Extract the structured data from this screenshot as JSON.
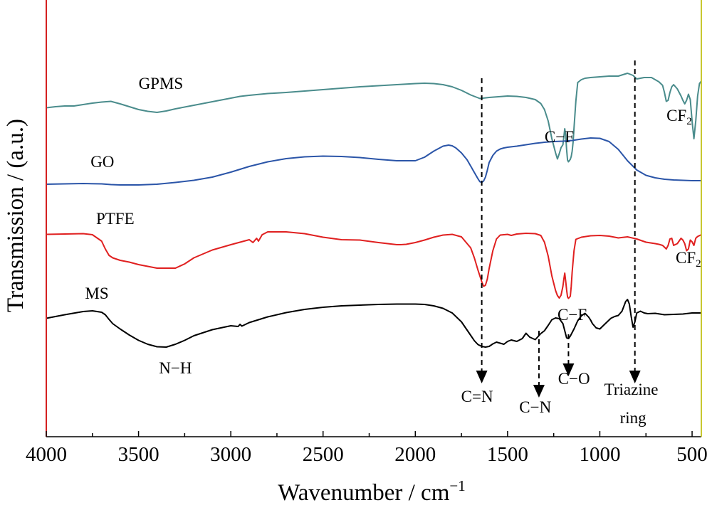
{
  "chart_data": {
    "type": "line",
    "xlabel": "Wavenumber / cm",
    "xlabel_superscript": "−1",
    "ylabel": "Transmission / (a.u.)",
    "xlim": [
      4000,
      450
    ],
    "ylim": [
      0,
      100
    ],
    "x_reversed": true,
    "x_ticks": [
      4000,
      3500,
      3000,
      2500,
      2000,
      1500,
      1000,
      500
    ],
    "grid": false,
    "legend": "none",
    "series": [
      {
        "name": "GPMS",
        "color": "#4a8c8c",
        "x": [
          4000,
          3950,
          3900,
          3850,
          3800,
          3750,
          3700,
          3650,
          3600,
          3500,
          3450,
          3400,
          3350,
          3300,
          3200,
          3100,
          3000,
          2950,
          2900,
          2800,
          2700,
          2600,
          2500,
          2400,
          2300,
          2200,
          2100,
          2000,
          1950,
          1900,
          1850,
          1800,
          1750,
          1700,
          1650,
          1600,
          1500,
          1450,
          1400,
          1350,
          1320,
          1300,
          1280,
          1260,
          1240,
          1230,
          1220,
          1210,
          1200,
          1195,
          1190,
          1185,
          1180,
          1175,
          1170,
          1160,
          1155,
          1150,
          1145,
          1140,
          1130,
          1120,
          1100,
          1080,
          1050,
          1000,
          950,
          900,
          850,
          820,
          800,
          780,
          760,
          740,
          720,
          700,
          680,
          660,
          650,
          640,
          630,
          620,
          610,
          600,
          580,
          560,
          550,
          540,
          530,
          520,
          510,
          500,
          490,
          480,
          470,
          460,
          450
        ],
        "y": [
          91.7,
          92.0,
          92.2,
          92.2,
          92.6,
          93.0,
          93.3,
          93.5,
          92.8,
          91.2,
          90.7,
          90.4,
          90.8,
          91.4,
          92.4,
          93.4,
          94.4,
          94.9,
          95.2,
          95.7,
          96.0,
          96.4,
          96.8,
          97.2,
          97.6,
          97.9,
          98.2,
          98.5,
          98.6,
          98.5,
          98.2,
          97.6,
          96.6,
          95.3,
          94.3,
          94.6,
          95.0,
          94.9,
          94.6,
          94.0,
          92.9,
          91.2,
          88.0,
          83.0,
          79.0,
          77.3,
          78.8,
          80.5,
          81.3,
          83.5,
          85.8,
          84.0,
          80.0,
          77.0,
          76.5,
          77.2,
          78.0,
          79.5,
          82.0,
          86.0,
          93.6,
          98.8,
          99.6,
          100.0,
          100.2,
          100.4,
          100.6,
          100.6,
          101.4,
          100.8,
          99.8,
          100.0,
          100.2,
          100.2,
          100.2,
          99.6,
          99.0,
          98.0,
          96.0,
          93.5,
          93.8,
          96.0,
          97.6,
          98.2,
          97.0,
          95.0,
          93.8,
          92.8,
          93.8,
          95.5,
          94.0,
          88.0,
          83.0,
          88.0,
          95.0,
          98.5,
          99.2
        ]
      },
      {
        "name": "GO",
        "color": "#2b55a8",
        "x": [
          4000,
          3900,
          3800,
          3700,
          3650,
          3600,
          3500,
          3400,
          3300,
          3200,
          3100,
          3000,
          2900,
          2800,
          2700,
          2600,
          2500,
          2400,
          2300,
          2200,
          2100,
          2000,
          1950,
          1900,
          1850,
          1820,
          1800,
          1780,
          1750,
          1720,
          1700,
          1680,
          1660,
          1650,
          1640,
          1630,
          1620,
          1610,
          1600,
          1580,
          1560,
          1540,
          1520,
          1500,
          1450,
          1400,
          1350,
          1300,
          1250,
          1200,
          1150,
          1100,
          1050,
          1000,
          950,
          900,
          850,
          800,
          750,
          700,
          650,
          600,
          550,
          500,
          450
        ],
        "y": [
          70.2,
          70.3,
          70.4,
          70.3,
          70.1,
          70.0,
          70.0,
          70.2,
          70.7,
          71.3,
          72.2,
          73.6,
          75.2,
          76.5,
          77.4,
          77.9,
          78.1,
          78.0,
          77.7,
          77.2,
          76.8,
          76.8,
          77.8,
          79.5,
          80.9,
          81.2,
          81.0,
          80.4,
          79.0,
          77.1,
          75.3,
          73.5,
          71.7,
          70.9,
          70.7,
          71.1,
          72.2,
          74.1,
          76.3,
          78.3,
          79.5,
          80.1,
          80.4,
          80.6,
          80.9,
          81.3,
          81.7,
          82.0,
          82.2,
          82.3,
          82.5,
          82.9,
          83.2,
          83.1,
          82.2,
          80.0,
          76.8,
          74.2,
          72.7,
          72.0,
          71.6,
          71.4,
          71.3,
          71.2,
          71.2
        ]
      },
      {
        "name": "PTFE",
        "color": "#e02020",
        "x": [
          4000,
          3900,
          3800,
          3750,
          3700,
          3680,
          3660,
          3640,
          3600,
          3550,
          3500,
          3400,
          3300,
          3250,
          3200,
          3100,
          3000,
          2900,
          2880,
          2860,
          2850,
          2830,
          2800,
          2700,
          2600,
          2500,
          2400,
          2300,
          2200,
          2100,
          2080,
          2050,
          2000,
          1950,
          1900,
          1850,
          1800,
          1750,
          1700,
          1680,
          1660,
          1640,
          1630,
          1620,
          1610,
          1600,
          1580,
          1560,
          1540,
          1520,
          1500,
          1480,
          1450,
          1400,
          1350,
          1320,
          1300,
          1280,
          1260,
          1240,
          1230,
          1220,
          1210,
          1200,
          1195,
          1190,
          1185,
          1180,
          1175,
          1170,
          1160,
          1155,
          1150,
          1140,
          1130,
          1100,
          1050,
          1000,
          950,
          900,
          850,
          800,
          750,
          700,
          680,
          660,
          650,
          640,
          630,
          620,
          610,
          600,
          580,
          560,
          550,
          540,
          530,
          520,
          510,
          500,
          490,
          480,
          470,
          450
        ],
        "y": [
          56.1,
          56.2,
          56.3,
          56.0,
          54.2,
          52.0,
          50.2,
          49.5,
          48.8,
          48.3,
          47.6,
          46.6,
          46.6,
          47.8,
          49.5,
          51.7,
          53.2,
          54.6,
          53.8,
          55.0,
          54.2,
          56.0,
          56.8,
          56.8,
          56.3,
          55.3,
          54.6,
          54.5,
          53.8,
          53.2,
          53.2,
          53.3,
          53.8,
          54.5,
          55.3,
          55.9,
          56.1,
          55.4,
          52.3,
          49.5,
          46.0,
          42.8,
          41.5,
          41.8,
          43.5,
          46.5,
          51.5,
          54.8,
          55.9,
          56.0,
          56.1,
          55.8,
          56.2,
          56.4,
          56.3,
          55.8,
          53.9,
          50.0,
          44.4,
          40.3,
          38.9,
          38.2,
          39.0,
          41.5,
          43.5,
          45.2,
          43.0,
          40.5,
          38.5,
          38.1,
          38.7,
          41.5,
          45.5,
          51.5,
          54.7,
          55.3,
          55.7,
          55.8,
          55.6,
          55.1,
          55.4,
          54.8,
          53.9,
          53.5,
          53.3,
          53.0,
          52.5,
          52.0,
          53.0,
          54.8,
          55.0,
          53.0,
          53.5,
          55.0,
          54.5,
          53.5,
          51.5,
          52.0,
          54.5,
          54.0,
          53.0,
          55.0,
          55.5,
          56.0
        ]
      },
      {
        "name": "MS",
        "color": "#000000",
        "x": [
          4000,
          3900,
          3800,
          3750,
          3700,
          3680,
          3660,
          3640,
          3600,
          3550,
          3500,
          3450,
          3400,
          3350,
          3300,
          3250,
          3200,
          3100,
          3000,
          2960,
          2950,
          2940,
          2900,
          2800,
          2700,
          2600,
          2500,
          2400,
          2300,
          2200,
          2100,
          2000,
          1950,
          1900,
          1850,
          1800,
          1750,
          1700,
          1680,
          1660,
          1640,
          1620,
          1600,
          1580,
          1560,
          1540,
          1520,
          1500,
          1480,
          1450,
          1420,
          1400,
          1380,
          1350,
          1320,
          1300,
          1280,
          1260,
          1240,
          1220,
          1200,
          1190,
          1180,
          1170,
          1160,
          1150,
          1140,
          1120,
          1100,
          1080,
          1060,
          1050,
          1040,
          1020,
          1000,
          980,
          960,
          940,
          920,
          900,
          880,
          860,
          850,
          840,
          830,
          820,
          810,
          800,
          780,
          760,
          740,
          700,
          650,
          600,
          550,
          500,
          450
        ],
        "y": [
          32.5,
          33.5,
          34.4,
          34.6,
          34.2,
          33.5,
          32.2,
          31.0,
          29.5,
          27.8,
          26.3,
          25.2,
          24.5,
          24.4,
          25.2,
          26.3,
          27.6,
          29.3,
          30.4,
          30.2,
          30.8,
          30.3,
          31.3,
          32.9,
          34.1,
          35.0,
          35.6,
          36.0,
          36.2,
          36.4,
          36.5,
          36.5,
          36.4,
          36.0,
          35.3,
          34.0,
          31.5,
          27.7,
          26.2,
          25.1,
          24.6,
          24.4,
          24.6,
          25.3,
          25.8,
          25.5,
          25.2,
          26.0,
          26.4,
          26.0,
          26.8,
          28.3,
          27.2,
          26.5,
          28.2,
          29.0,
          30.5,
          32.1,
          32.6,
          32.4,
          31.0,
          29.0,
          27.0,
          26.8,
          27.5,
          28.5,
          29.5,
          31.8,
          33.2,
          33.9,
          32.8,
          32.0,
          31.0,
          29.8,
          29.5,
          30.5,
          31.5,
          32.5,
          33.0,
          33.3,
          34.5,
          37.2,
          37.8,
          36.5,
          33.0,
          30.0,
          31.5,
          34.0,
          34.5,
          34.0,
          33.8,
          33.9,
          33.5,
          33.6,
          33.7,
          34.0,
          34.0
        ]
      }
    ],
    "series_labels": [
      {
        "text": "GPMS",
        "x": 3500,
        "y": 97
      },
      {
        "text": "GO",
        "x": 3760,
        "y": 75
      },
      {
        "text": "PTFE",
        "x": 3730,
        "y": 59
      },
      {
        "text": "MS",
        "x": 3790,
        "y": 38
      }
    ],
    "guide_lines": [
      {
        "x": 1640,
        "y_from": 100,
        "y_to": 17
      },
      {
        "x": 810,
        "y_from": 105,
        "y_to": 17
      }
    ],
    "arrows": [
      {
        "x": 1330,
        "y_from": 29,
        "y_to": 13
      },
      {
        "x": 1170,
        "y_from": 28,
        "y_to": 19
      }
    ],
    "annotations": [
      {
        "text": "C−F",
        "x": 1220,
        "y": 82
      },
      {
        "text": "CF",
        "sub": "2",
        "x": 570,
        "y": 88
      },
      {
        "text": "CF",
        "sub": "2",
        "x": 520,
        "y": 48
      },
      {
        "text": "C−F",
        "x": 1150,
        "y": 32
      },
      {
        "text": "N−H",
        "x": 3300,
        "y": 17
      },
      {
        "text": "C=N",
        "x": 1665,
        "y": 9
      },
      {
        "text": "C−N",
        "x": 1350,
        "y": 6
      },
      {
        "text": "C−O",
        "x": 1140,
        "y": 14
      },
      {
        "text": "Triazine",
        "x": 830,
        "y": 11
      },
      {
        "text": "ring",
        "x": 820,
        "y": 3
      }
    ]
  }
}
